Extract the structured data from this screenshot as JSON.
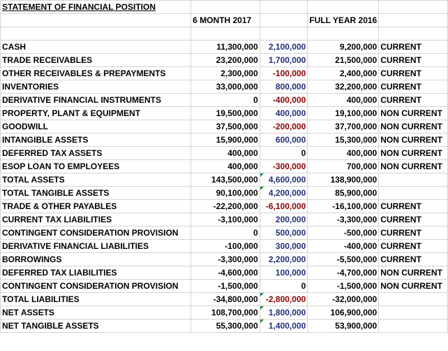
{
  "sheet": {
    "title": "STATEMENT OF FINANCIAL POSITION",
    "headers": {
      "col_2017": "6 MONTH 2017",
      "col_2016": "FULL YEAR 2016"
    },
    "colors": {
      "positive_change": "#1f2f7a",
      "negative_change": "#8b0000",
      "gridline": "#d4d4d4",
      "note_indicator": "#1e8a3a"
    },
    "rows": [
      {
        "label": "CASH",
        "v2017": "11,300,000",
        "change": "2,100,000",
        "change_color": "blue",
        "v2016": "9,200,000",
        "class": "CURRENT",
        "flag": false
      },
      {
        "label": "TRADE RECEIVABLES",
        "v2017": "23,200,000",
        "change": "1,700,000",
        "change_color": "blue",
        "v2016": "21,500,000",
        "class": "CURRENT",
        "flag": false
      },
      {
        "label": "OTHER RECEIVABLES & PREPAYMENTS",
        "v2017": "2,300,000",
        "change": "-100,000",
        "change_color": "red",
        "v2016": "2,400,000",
        "class": "CURRENT",
        "flag": false
      },
      {
        "label": "INVENTORIES",
        "v2017": "33,000,000",
        "change": "800,000",
        "change_color": "blue",
        "v2016": "32,200,000",
        "class": "CURRENT",
        "flag": false
      },
      {
        "label": "DERIVATIVE FINANCIAL INSTRUMENTS",
        "v2017": "0",
        "change": "-400,000",
        "change_color": "red",
        "v2016": "400,000",
        "class": "CURRENT",
        "flag": false
      },
      {
        "label": "PROPERTY, PLANT & EQUIPMENT",
        "v2017": "19,500,000",
        "change": "400,000",
        "change_color": "blue",
        "v2016": "19,100,000",
        "class": "NON CURRENT",
        "flag": false
      },
      {
        "label": "GOODWILL",
        "v2017": "37,500,000",
        "change": "-200,000",
        "change_color": "red",
        "v2016": "37,700,000",
        "class": "NON CURRENT",
        "flag": false
      },
      {
        "label": "INTANGIBLE ASSETS",
        "v2017": "15,900,000",
        "change": "600,000",
        "change_color": "blue",
        "v2016": "15,300,000",
        "class": "NON CURRENT",
        "flag": false
      },
      {
        "label": "DEFERRED TAX ASSETS",
        "v2017": "400,000",
        "change": "0",
        "change_color": "black",
        "v2016": "400,000",
        "class": "NON CURRENT",
        "flag": false
      },
      {
        "label": "ESOP LOAN TO EMPLOYEES",
        "v2017": "400,000",
        "change": "-300,000",
        "change_color": "red",
        "v2016": "700,000",
        "class": "NON CURRENT",
        "flag": false
      },
      {
        "label": "TOTAL ASSETS",
        "v2017": "143,500,000",
        "change": "4,600,000",
        "change_color": "blue",
        "v2016": "138,900,000",
        "class": "",
        "flag": true
      },
      {
        "label": "TOTAL TANGIBLE ASSETS",
        "v2017": "90,100,000",
        "change": "4,200,000",
        "change_color": "blue",
        "v2016": "85,900,000",
        "class": "",
        "flag": true
      },
      {
        "label": "TRADE & OTHER PAYABLES",
        "v2017": "-22,200,000",
        "change": "-6,100,000",
        "change_color": "red",
        "v2016": "-16,100,000",
        "class": "CURRENT",
        "flag": false
      },
      {
        "label": "CURRENT TAX LIABILITIES",
        "v2017": "-3,100,000",
        "change": "200,000",
        "change_color": "blue",
        "v2016": "-3,300,000",
        "class": "CURRENT",
        "flag": false
      },
      {
        "label": "CONTINGENT CONSIDERATION PROVISION",
        "v2017": "0",
        "change": "500,000",
        "change_color": "blue",
        "v2016": "-500,000",
        "class": "CURRENT",
        "flag": false
      },
      {
        "label": "DERIVATIVE FINANCIAL LIABILITIES",
        "v2017": "-100,000",
        "change": "300,000",
        "change_color": "blue",
        "v2016": "-400,000",
        "class": "CURRENT",
        "flag": false
      },
      {
        "label": "BORROWINGS",
        "v2017": "-3,300,000",
        "change": "2,200,000",
        "change_color": "blue",
        "v2016": "-5,500,000",
        "class": "CURRENT",
        "flag": false
      },
      {
        "label": "DEFERRED TAX LIABILITIES",
        "v2017": "-4,600,000",
        "change": "100,000",
        "change_color": "blue",
        "v2016": "-4,700,000",
        "class": "NON CURRENT",
        "flag": false
      },
      {
        "label": "CONTINGENT CONSIDERATION PROVISION",
        "v2017": "-1,500,000",
        "change": "0",
        "change_color": "black",
        "v2016": "-1,500,000",
        "class": "NON CURRENT",
        "flag": false
      },
      {
        "label": "TOTAL LIABILITIES",
        "v2017": "-34,800,000",
        "change": "-2,800,000",
        "change_color": "red",
        "v2016": "-32,000,000",
        "class": "",
        "flag": true
      },
      {
        "label": "NET ASSETS",
        "v2017": "108,700,000",
        "change": "1,800,000",
        "change_color": "blue",
        "v2016": "106,900,000",
        "class": "",
        "flag": true
      },
      {
        "label": "NET TANGIBLE ASSETS",
        "v2017": "55,300,000",
        "change": "1,400,000",
        "change_color": "blue",
        "v2016": "53,900,000",
        "class": "",
        "flag": true
      }
    ]
  }
}
